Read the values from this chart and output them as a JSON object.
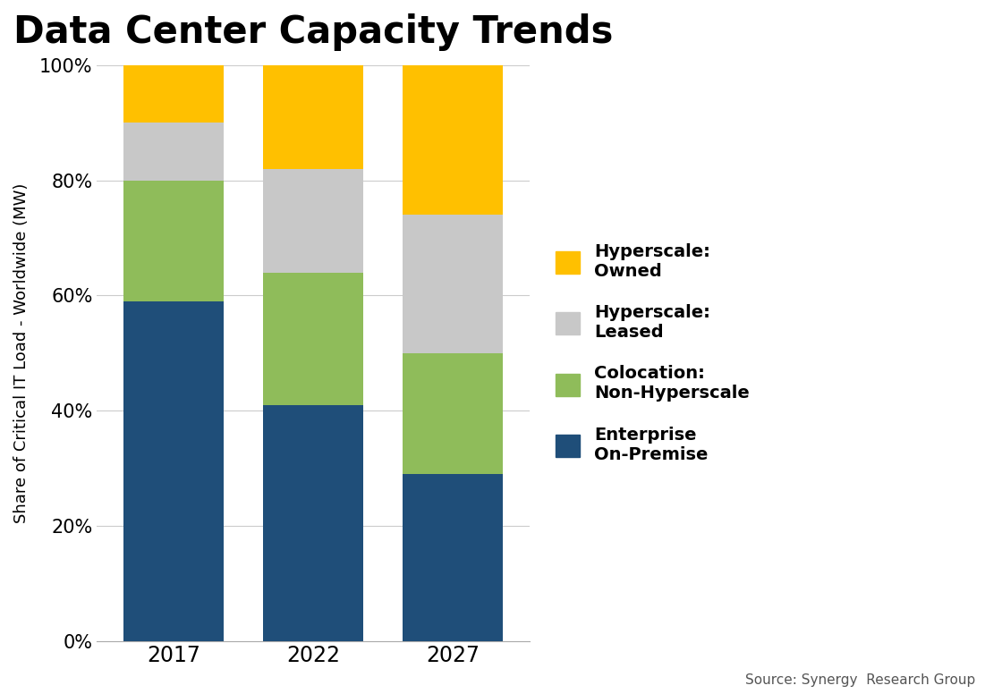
{
  "title": "Data Center Capacity Trends",
  "ylabel": "Share of Critical IT Load - Worldwide (MW)",
  "source": "Source: Synergy  Research Group",
  "years": [
    "2017",
    "2022",
    "2027"
  ],
  "series": {
    "Enterprise On-Premise": [
      59,
      41,
      29
    ],
    "Colocation: Non-Hyperscale": [
      21,
      23,
      21
    ],
    "Hyperscale: Leased": [
      10,
      18,
      24
    ],
    "Hyperscale: Owned": [
      10,
      18,
      26
    ]
  },
  "colors": {
    "Enterprise On-Premise": "#1f4e79",
    "Colocation: Non-Hyperscale": "#8fbc5a",
    "Hyperscale: Leased": "#c8c8c8",
    "Hyperscale: Owned": "#ffc000"
  },
  "series_order": [
    "Enterprise On-Premise",
    "Colocation: Non-Hyperscale",
    "Hyperscale: Leased",
    "Hyperscale: Owned"
  ],
  "legend_items": [
    {
      "label": "Hyperscale:\nOwned",
      "color": "#ffc000"
    },
    {
      "label": "Hyperscale:\nLeased",
      "color": "#c8c8c8"
    },
    {
      "label": "Colocation:\nNon-Hyperscale",
      "color": "#8fbc5a"
    },
    {
      "label": "Enterprise\nOn-Premise",
      "color": "#1f4e79"
    }
  ],
  "bar_width": 0.72,
  "x_positions": [
    0,
    1,
    2
  ],
  "xlim": [
    -0.55,
    2.55
  ],
  "ylim": [
    0,
    100
  ],
  "yticks": [
    0,
    20,
    40,
    60,
    80,
    100
  ],
  "ytick_labels": [
    "0%",
    "20%",
    "40%",
    "60%",
    "80%",
    "100%"
  ],
  "title_fontsize": 30,
  "axis_label_fontsize": 13,
  "tick_fontsize": 15,
  "xtick_fontsize": 17,
  "legend_fontsize": 14,
  "source_fontsize": 11,
  "background_color": "#ffffff",
  "grid_color": "#cccccc",
  "grid_linewidth": 0.8
}
